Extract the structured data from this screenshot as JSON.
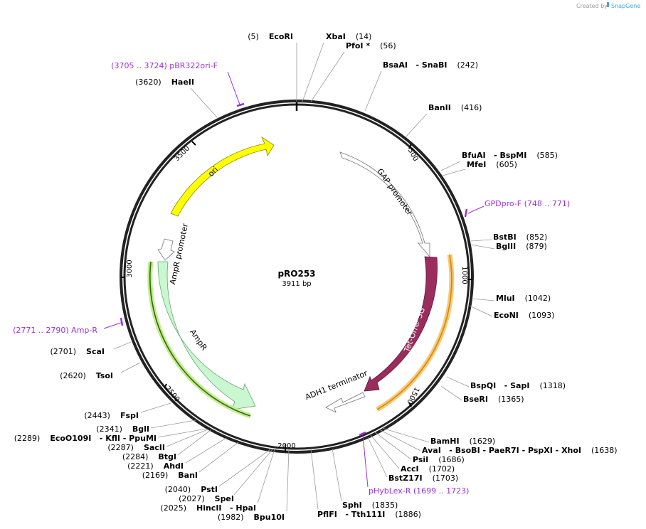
{
  "header": {
    "created_by": "Created by",
    "brand": "SnapGene"
  },
  "plasmid": {
    "name": "pRO253",
    "size": "3911 bp"
  },
  "position_ticks": [
    "500",
    "1000",
    "1500",
    "2000",
    "2500",
    "3000",
    "3500"
  ],
  "features": [
    {
      "name": "ori",
      "color": "#ffff00"
    },
    {
      "name": "GAP promoter",
      "color": "#ffffff"
    },
    {
      "name": "Tet-On® 3G",
      "color": "#9b2d5e"
    },
    {
      "name": "ADH1 terminator",
      "color": "#ffffff"
    },
    {
      "name": "AmpR promoter",
      "color": "#ffffff"
    },
    {
      "name": "AmpR",
      "color": "#c9f7d0"
    }
  ],
  "sites": [
    {
      "pos": "(5)",
      "name": "EcoRI"
    },
    {
      "name": "XbaI",
      "pos": "(14)"
    },
    {
      "name": "PfoI *",
      "pos": "(56)"
    },
    {
      "name": "BsaAI",
      "extra": "- SnaBI",
      "pos": "(242)"
    },
    {
      "name": "BanII",
      "pos": "(416)"
    },
    {
      "name": "BfuAI",
      "extra": "- BspMI",
      "pos": "(585)"
    },
    {
      "name": "MfeI",
      "pos": "(605)"
    },
    {
      "name": "BstBI",
      "pos": "(852)"
    },
    {
      "name": "BglII",
      "pos": "(879)"
    },
    {
      "name": "MluI",
      "pos": "(1042)"
    },
    {
      "name": "EcoNI",
      "pos": "(1093)"
    },
    {
      "name": "BspQI",
      "extra": "- SapI",
      "pos": "(1318)"
    },
    {
      "name": "BseRI",
      "pos": "(1365)"
    },
    {
      "name": "BamHI",
      "pos": "(1629)"
    },
    {
      "name": "AvaI",
      "extra": "- BsoBI   - PaeR7I   - PspXI   - XhoI",
      "pos": "(1638)"
    },
    {
      "name": "PsiI",
      "pos": "(1686)"
    },
    {
      "name": "AccI",
      "pos": "(1702)"
    },
    {
      "name": "BstZ17I",
      "pos": "(1703)"
    },
    {
      "name": "SphI",
      "pos": "(1835)"
    },
    {
      "name": "PflFI",
      "extra": "- Tth111I",
      "pos": "(1886)"
    },
    {
      "pos": "(1982)",
      "name": "Bpu10I"
    },
    {
      "pos": "(2025)",
      "name": "HincII",
      "extra": "- HpaI"
    },
    {
      "pos": "(2027)",
      "name": "SpeI"
    },
    {
      "pos": "(2040)",
      "name": "PstI"
    },
    {
      "pos": "(2169)",
      "name": "BanI"
    },
    {
      "pos": "(2221)",
      "name": "AhdI"
    },
    {
      "pos": "(2284)",
      "name": "BtgI"
    },
    {
      "pos": "(2287)",
      "name": "SacII"
    },
    {
      "pos": "(2289)",
      "name": "EcoO109I",
      "extra": "- KflI   - PpuMI"
    },
    {
      "pos": "(2341)",
      "name": "BglI"
    },
    {
      "pos": "(2443)",
      "name": "FspI"
    },
    {
      "pos": "(2620)",
      "name": "TsoI"
    },
    {
      "pos": "(2701)",
      "name": "ScaI"
    },
    {
      "pos": "(3620)",
      "name": "HaeII"
    }
  ],
  "primers": [
    {
      "text": "(3705 .. 3724)  pBR322ori-F"
    },
    {
      "text": "GPDpro-F     (748 .. 771)"
    },
    {
      "text": "(2771 .. 2790)  Amp-R"
    },
    {
      "text": "pHybLex-R     (1699 .. 1723)"
    }
  ]
}
